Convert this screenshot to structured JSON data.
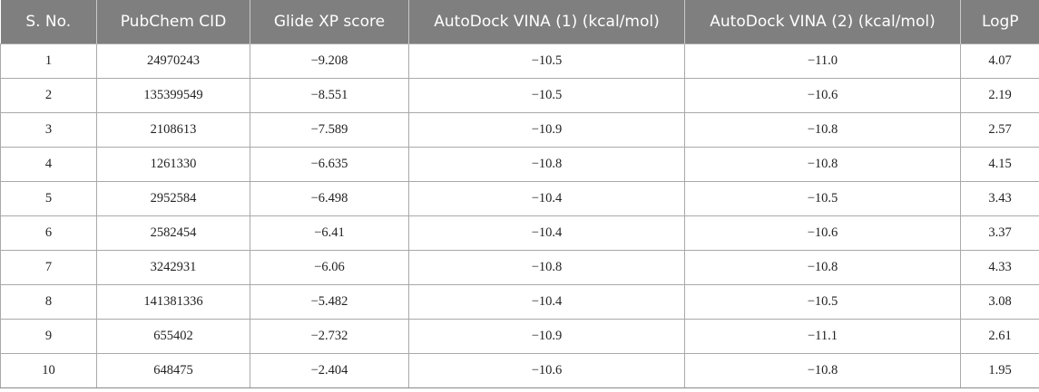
{
  "table": {
    "headers": [
      "S. No.",
      "PubChem CID",
      "Glide XP score",
      "AutoDock VINA (1) (kcal/mol)",
      "AutoDock VINA (2) (kcal/mol)",
      "LogP"
    ],
    "rows": [
      [
        "1",
        "24970243",
        "−9.208",
        "−10.5",
        "−11.0",
        "4.07"
      ],
      [
        "2",
        "135399549",
        "−8.551",
        "−10.5",
        "−10.6",
        "2.19"
      ],
      [
        "3",
        "2108613",
        "−7.589",
        "−10.9",
        "−10.8",
        "2.57"
      ],
      [
        "4",
        "1261330",
        "−6.635",
        "−10.8",
        "−10.8",
        "4.15"
      ],
      [
        "5",
        "2952584",
        "−6.498",
        "−10.4",
        "−10.5",
        "3.43"
      ],
      [
        "6",
        "2582454",
        "−6.41",
        "−10.4",
        "−10.6",
        "3.37"
      ],
      [
        "7",
        "3242931",
        "−6.06",
        "−10.8",
        "−10.8",
        "4.33"
      ],
      [
        "8",
        "141381336",
        "−5.482",
        "−10.4",
        "−10.5",
        "3.08"
      ],
      [
        "9",
        "655402",
        "−2.732",
        "−10.9",
        "−11.1",
        "2.61"
      ],
      [
        "10",
        "648475",
        "−2.404",
        "−10.6",
        "−10.8",
        "1.95"
      ]
    ]
  },
  "colors": {
    "header_background": "#7f7f7f",
    "header_text": "#ffffff",
    "cell_border": "#a9a9a9"
  }
}
